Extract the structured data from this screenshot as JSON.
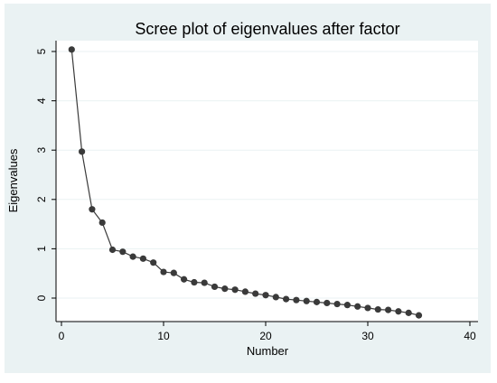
{
  "chart_data": {
    "type": "line",
    "title": "Scree plot of eigenvalues after factor",
    "xlabel": "Number",
    "ylabel": "Eigenvalues",
    "xlim": [
      0,
      40
    ],
    "ylim": [
      -0.5,
      5.3
    ],
    "x_ticks": [
      "0",
      "10",
      "20",
      "30",
      "40"
    ],
    "y_ticks": [
      "0",
      "1",
      "2",
      "3",
      "4",
      "5"
    ],
    "grid": true,
    "legend": "none",
    "series": [
      {
        "x": [
          1,
          2,
          3,
          4,
          5,
          6,
          7,
          8,
          9,
          10,
          11,
          12,
          13,
          14,
          15,
          16,
          17,
          18,
          19,
          20,
          21,
          22,
          23,
          24,
          25,
          26,
          27,
          28,
          29,
          30,
          31,
          32,
          33,
          34,
          35
        ],
        "values": [
          5.04,
          2.97,
          1.8,
          1.53,
          0.98,
          0.94,
          0.84,
          0.8,
          0.72,
          0.53,
          0.51,
          0.38,
          0.32,
          0.31,
          0.23,
          0.19,
          0.17,
          0.13,
          0.09,
          0.06,
          0.02,
          -0.02,
          -0.04,
          -0.06,
          -0.08,
          -0.1,
          -0.12,
          -0.14,
          -0.17,
          -0.2,
          -0.23,
          -0.24,
          -0.27,
          -0.3,
          -0.35
        ]
      }
    ]
  },
  "colors": {
    "panel_background": "#eaf2f3",
    "plot_background": "#ffffff",
    "series": "#3a3a3a",
    "grid": "#eaf2f3"
  }
}
